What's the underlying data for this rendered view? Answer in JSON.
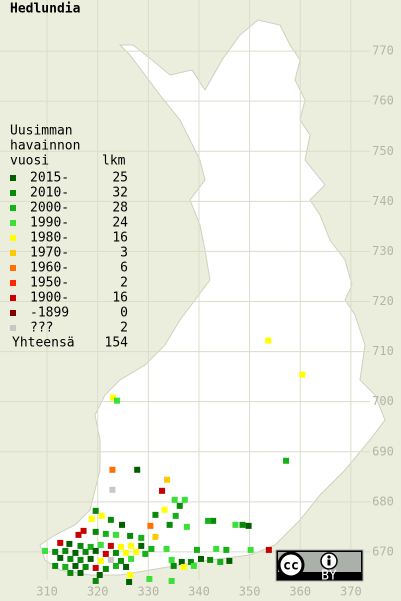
{
  "title": "Hedlundia",
  "legend": {
    "header": [
      "Uusimman",
      "havainnon",
      "vuosi"
    ],
    "count_header": "lkm",
    "rows": [
      {
        "label": "2015-",
        "count": 25,
        "color": "#006000"
      },
      {
        "label": "2010-",
        "count": 32,
        "color": "#0a880a"
      },
      {
        "label": "2000-",
        "count": 28,
        "color": "#18b018"
      },
      {
        "label": "1990-",
        "count": 24,
        "color": "#38e038"
      },
      {
        "label": "1980-",
        "count": 16,
        "color": "#ffff00"
      },
      {
        "label": "1970-",
        "count": 3,
        "color": "#ffc800"
      },
      {
        "label": "1960-",
        "count": 6,
        "color": "#ff7000"
      },
      {
        "label": "1950-",
        "count": 2,
        "color": "#ff2800"
      },
      {
        "label": "1900-",
        "count": 16,
        "color": "#c80000"
      },
      {
        "label": "-1899",
        "count": 0,
        "color": "#800000"
      },
      {
        "label": "???",
        "count": 2,
        "color": "#c8c8c8"
      }
    ],
    "total_label": "Yhteensä",
    "total": 154
  },
  "map": {
    "xticks": [
      310,
      320,
      330,
      340,
      350,
      360,
      370
    ],
    "yticks": [
      670,
      680,
      690,
      700,
      710,
      720,
      730,
      740,
      750,
      760,
      770
    ],
    "xlim": [
      300.7,
      379.9
    ],
    "ylim": [
      660.2,
      780.2
    ],
    "points": [
      [
        353.7,
        712.2,
        4
      ],
      [
        360.4,
        705.4,
        4
      ],
      [
        323,
        700.8,
        4
      ],
      [
        323.8,
        700.2,
        3
      ],
      [
        357.2,
        688.2,
        2
      ],
      [
        327.8,
        686.4,
        0
      ],
      [
        322.9,
        686.4,
        6
      ],
      [
        322.9,
        682.4,
        10
      ],
      [
        333.7,
        684.4,
        5
      ],
      [
        332.7,
        682.2,
        8
      ],
      [
        335.2,
        680.4,
        3
      ],
      [
        337.2,
        680.4,
        3
      ],
      [
        336.2,
        679.2,
        1
      ],
      [
        333.2,
        678.4,
        4
      ],
      [
        331.4,
        677.4,
        1
      ],
      [
        335.4,
        677.2,
        2
      ],
      [
        319.6,
        678.2,
        1
      ],
      [
        320.8,
        677.2,
        4
      ],
      [
        318.8,
        676.6,
        4
      ],
      [
        322.6,
        676.4,
        1
      ],
      [
        324.8,
        675.4,
        0
      ],
      [
        330.4,
        675.2,
        6
      ],
      [
        334.2,
        675.4,
        1
      ],
      [
        337.6,
        675.0,
        3
      ],
      [
        342.8,
        676.2,
        1
      ],
      [
        341.8,
        676.2,
        2
      ],
      [
        348.6,
        675.4,
        1
      ],
      [
        349.8,
        675.2,
        0
      ],
      [
        347.2,
        675.4,
        3
      ],
      [
        317.2,
        674.2,
        8
      ],
      [
        319.6,
        674.0,
        1
      ],
      [
        321.6,
        673.6,
        2
      ],
      [
        323.6,
        673.4,
        3
      ],
      [
        326.4,
        673.2,
        1
      ],
      [
        328.6,
        672.8,
        2
      ],
      [
        331.4,
        673.0,
        5
      ],
      [
        316.2,
        673.4,
        8
      ],
      [
        312.6,
        671.8,
        8
      ],
      [
        314.4,
        671.6,
        0
      ],
      [
        316.6,
        671.2,
        1
      ],
      [
        318.6,
        671.0,
        2
      ],
      [
        320.6,
        671.4,
        3
      ],
      [
        322.6,
        671.2,
        8
      ],
      [
        324.6,
        671.0,
        4
      ],
      [
        326.6,
        671.2,
        4
      ],
      [
        328.6,
        671.2,
        0
      ],
      [
        330.6,
        670.6,
        2
      ],
      [
        333.6,
        670.6,
        3
      ],
      [
        339.6,
        670.4,
        2
      ],
      [
        343.4,
        670.6,
        3
      ],
      [
        345.4,
        670.4,
        2
      ],
      [
        350.2,
        670.4,
        3
      ],
      [
        353.8,
        670.4,
        8
      ],
      [
        309.6,
        670.2,
        3
      ],
      [
        311.6,
        670.0,
        1
      ],
      [
        313.6,
        670.2,
        1
      ],
      [
        315.6,
        669.8,
        0
      ],
      [
        317.6,
        670.0,
        1
      ],
      [
        319.6,
        670.2,
        0
      ],
      [
        321.6,
        669.6,
        8
      ],
      [
        323.6,
        669.8,
        1
      ],
      [
        325.6,
        669.8,
        4
      ],
      [
        327.6,
        670.0,
        4
      ],
      [
        329.4,
        669.6,
        2
      ],
      [
        312.6,
        668.8,
        0
      ],
      [
        314.6,
        668.6,
        1
      ],
      [
        316.6,
        668.4,
        1
      ],
      [
        318.6,
        668.6,
        0
      ],
      [
        320.6,
        668.2,
        4
      ],
      [
        322.6,
        668.4,
        10
      ],
      [
        324.6,
        668.2,
        1
      ],
      [
        326.6,
        668.6,
        3
      ],
      [
        334.6,
        668.4,
        3
      ],
      [
        336.6,
        668.0,
        0
      ],
      [
        338.4,
        668.0,
        1
      ],
      [
        340.4,
        668.6,
        0
      ],
      [
        342.2,
        668.4,
        1
      ],
      [
        344.2,
        668.0,
        2
      ],
      [
        346.0,
        668.2,
        0
      ],
      [
        311.6,
        667.2,
        1
      ],
      [
        313.6,
        667.0,
        2
      ],
      [
        315.6,
        667.2,
        0
      ],
      [
        317.6,
        667.0,
        1
      ],
      [
        319.6,
        666.8,
        8
      ],
      [
        321.6,
        666.6,
        1
      ],
      [
        323.6,
        667.2,
        2
      ],
      [
        325.6,
        667.0,
        0
      ],
      [
        335.0,
        667.2,
        1
      ],
      [
        337.0,
        667.0,
        4
      ],
      [
        339.0,
        667.2,
        3
      ],
      [
        314.6,
        665.8,
        1
      ],
      [
        316.6,
        665.8,
        0
      ],
      [
        326.4,
        665.4,
        4
      ],
      [
        320.4,
        665.4,
        0
      ],
      [
        330.2,
        664.6,
        3
      ],
      [
        319.6,
        664.2,
        1
      ],
      [
        334.6,
        664.2,
        3
      ],
      [
        326.2,
        664.0,
        0
      ]
    ]
  },
  "badge": {
    "cc": "cc",
    "by": "BY"
  }
}
